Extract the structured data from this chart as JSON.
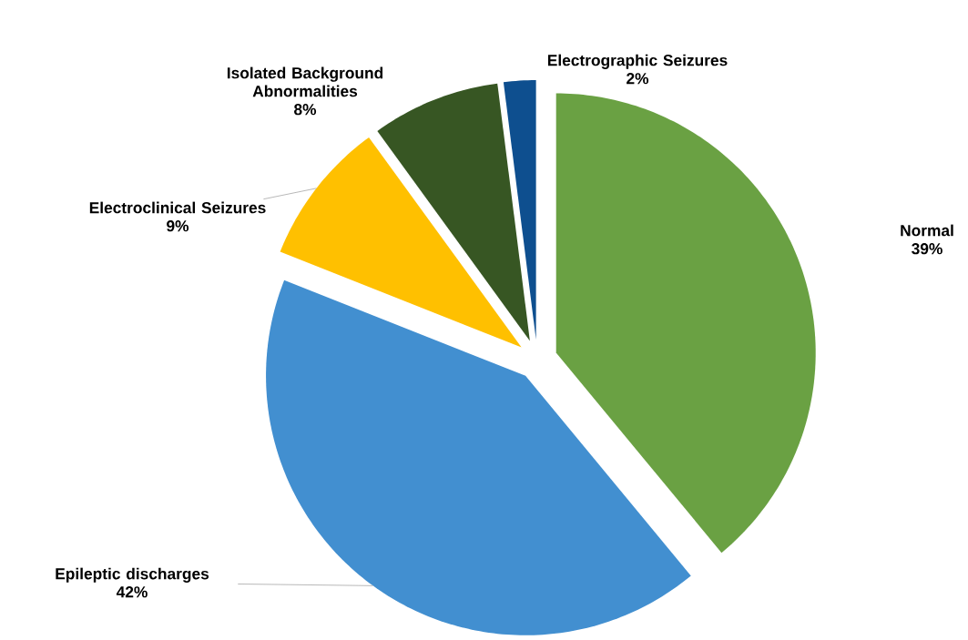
{
  "chart_data": {
    "type": "pie",
    "categories": [
      "Normal",
      "Epileptic discharges",
      "Electroclinical Seizures",
      "Isolated Background Abnormalities",
      "Electrographic Seizures"
    ],
    "values": [
      39,
      42,
      9,
      8,
      2
    ],
    "value_labels": [
      "39%",
      "42%",
      "9%",
      "8%",
      "2%"
    ],
    "colors": [
      "#6aa143",
      "#428fd0",
      "#ffc000",
      "#375623",
      "#0e4f8f"
    ]
  }
}
